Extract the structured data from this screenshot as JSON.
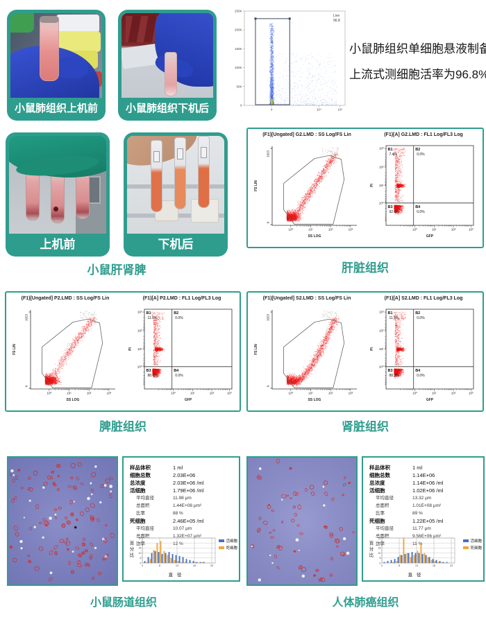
{
  "accent_color": "#2f9d8e",
  "row1": {
    "photo_before": {
      "caption": "小鼠肺组织上机前"
    },
    "photo_after": {
      "caption": "小鼠肺组织下机后"
    },
    "note_line1": "小鼠肺组织单细胞悬液制备",
    "note_line2": "上流式测细胞活率为96.8%"
  },
  "row2": {
    "photo_before": {
      "caption": "上机前"
    },
    "photo_after": {
      "caption": "下机后"
    },
    "group_caption": "小鼠肝肾脾",
    "liver": {
      "caption": "肝脏组织",
      "ss_title": "(F1)[Ungated] G2.LMD : SS Log/FS Lin",
      "quad_title": "(F1)[A] G2.LMD : FL1 Log/FL3 Log"
    }
  },
  "row3": {
    "spleen": {
      "caption": "脾脏组织",
      "ss_title": "(F1)[Ungated] P2.LMD : SS Log/FS Lin",
      "quad_title": "(F1)[A] P2.LMD : FL1 Log/FL3 Log"
    },
    "kidney": {
      "caption": "肾脏组织",
      "ss_title": "(F1)[Ungated] S2.LMD : SS Log/FS Lin",
      "quad_title": "(F1)[A] S2.LMD : FL1 Log/FL3 Log"
    }
  },
  "row4": {
    "intestine": {
      "caption": "小鼠肠道组织",
      "stats": [
        {
          "label": "样品体积",
          "value": "1 ml"
        },
        {
          "label": "细胞总数",
          "value": "2.03E+06"
        },
        {
          "label": "总浓度",
          "value": "2.03E+06 /ml"
        },
        {
          "label": "活细胞",
          "value": "1.79E+06 /ml"
        },
        {
          "label": "平均直径",
          "value": "11.98 μm",
          "sub": true
        },
        {
          "label": "总面积",
          "value": "1.44E+08 μm²",
          "sub": true
        },
        {
          "label": "比率",
          "value": "88 %",
          "sub": true
        },
        {
          "label": "死细胞",
          "value": "2.46E+05 /ml"
        },
        {
          "label": "平均直径",
          "value": "10.07 μm",
          "sub": true
        },
        {
          "label": "总面积",
          "value": "1.32E+07 μm²",
          "sub": true
        },
        {
          "label": "比率",
          "value": "12 %",
          "sub": true
        }
      ]
    },
    "lung_cancer": {
      "caption": "人体肺癌组织",
      "stats": [
        {
          "label": "样品体积",
          "value": "1 ml"
        },
        {
          "label": "细胞总数",
          "value": "1.14E+06"
        },
        {
          "label": "总浓度",
          "value": "1.14E+06 /ml"
        },
        {
          "label": "活细胞",
          "value": "1.02E+06 /ml"
        },
        {
          "label": "平均直径",
          "value": "13.32 μm",
          "sub": true
        },
        {
          "label": "总面积",
          "value": "1.01E+08 μm²",
          "sub": true
        },
        {
          "label": "比率",
          "value": "89 %",
          "sub": true
        },
        {
          "label": "死细胞",
          "value": "1.22E+05 /ml"
        },
        {
          "label": "平均直径",
          "value": "11.77 μm",
          "sub": true
        },
        {
          "label": "总面积",
          "value": "9.56E+06 μm²",
          "sub": true
        },
        {
          "label": "比率",
          "value": "11 %",
          "sub": true
        }
      ]
    }
  },
  "chart_data": {
    "viability": {
      "type": "scatter",
      "painter": "viability",
      "gate_label": "Live",
      "gate_value": "96.8",
      "yticks": [
        "250K",
        "200K",
        "150K",
        "100K",
        "50K",
        "0"
      ],
      "xticks": [
        "0",
        "10⁴",
        "10⁵"
      ],
      "point_color": "#3c64dc",
      "seed": 7
    },
    "liver_ss": {
      "type": "scatter",
      "painter": "ssfs",
      "xlabel": "SS LOG",
      "ylabel": "FS LIN",
      "xticks": [
        "10⁰",
        "10¹",
        "10²",
        "10³"
      ],
      "yticks": [
        "1023",
        "0"
      ],
      "point_color": "#eb1414",
      "blob": 0.52,
      "exp": 1.0,
      "seed": 11
    },
    "liver_quad": {
      "type": "scatter",
      "painter": "quadrant",
      "xlabel": "GFP",
      "ylabel": "PI",
      "xticks": [
        "10⁰",
        "10¹",
        "10²",
        "10³"
      ],
      "yticks": [
        "10³",
        "10²",
        "10¹",
        "10⁰"
      ],
      "quadrants": [
        [
          "B1",
          "7.4%"
        ],
        [
          "B2",
          "0.0%"
        ],
        [
          "B3",
          "92.6%"
        ],
        [
          "B4",
          "0.0%"
        ]
      ],
      "point_color": "#eb1414",
      "seed": 13
    },
    "spleen_ss": {
      "type": "scatter",
      "painter": "ssfs",
      "xlabel": "SS LOG",
      "ylabel": "FS LIN",
      "xticks": [
        "10⁰",
        "10¹",
        "10²",
        "10³"
      ],
      "yticks": [
        "1023",
        "0"
      ],
      "point_color": "#eb1414",
      "blob": 0.68,
      "exp": 0.85,
      "seed": 31
    },
    "spleen_quad": {
      "type": "scatter",
      "painter": "quadrant",
      "xlabel": "GFP",
      "ylabel": "PI",
      "xticks": [
        "10⁰",
        "10¹",
        "10²",
        "10³"
      ],
      "yticks": [
        "10³",
        "10²",
        "10¹",
        "10⁰"
      ],
      "quadrants": [
        [
          "B1",
          "11.9%"
        ],
        [
          "B2",
          "0.0%"
        ],
        [
          "B3",
          "88.1%"
        ],
        [
          "B4",
          "0.0%"
        ]
      ],
      "point_color": "#eb1414",
      "seed": 33
    },
    "kidney_ss": {
      "type": "scatter",
      "painter": "ssfs",
      "xlabel": "SS LOG",
      "ylabel": "FS LIN",
      "xticks": [
        "10⁰",
        "10¹",
        "10²",
        "10³"
      ],
      "yticks": [
        "1023",
        "0"
      ],
      "point_color": "#eb1414",
      "blob": 0.38,
      "exp": 1.65,
      "seed": 51
    },
    "kidney_quad": {
      "type": "scatter",
      "painter": "quadrant",
      "xlabel": "GFP",
      "ylabel": "PI",
      "xticks": [
        "10⁰",
        "10¹",
        "10²",
        "10³"
      ],
      "yticks": [
        "10³",
        "10²",
        "10¹",
        "10⁰"
      ],
      "quadrants": [
        [
          "B1",
          "11.9%"
        ],
        [
          "B2",
          "0.0%"
        ],
        [
          "B3",
          "88.1%"
        ],
        [
          "B4",
          "0.0%"
        ]
      ],
      "point_color": "#eb1414",
      "seed": 53
    },
    "intestine_hist": {
      "type": "bar",
      "painter": "hist",
      "ylabel": "百分比",
      "xlabel": "直 径",
      "ylim": [
        0,
        25
      ],
      "yticks": [
        0,
        5,
        10,
        15,
        20,
        25
      ],
      "xticks": [
        3,
        8,
        13,
        18,
        23
      ],
      "x_first": 4,
      "series": [
        {
          "name": "活细胞",
          "color": "#4472c4",
          "values": [
            2,
            6,
            10,
            12,
            11,
            9,
            10,
            11,
            9,
            8,
            7,
            6,
            4,
            3,
            2,
            1,
            1,
            1,
            0,
            0
          ]
        },
        {
          "name": "死细胞",
          "color": "#f2a53a",
          "values": [
            1,
            4,
            13,
            20,
            22,
            12,
            8,
            5,
            3,
            2,
            1,
            1,
            0,
            0,
            1,
            0,
            1,
            0,
            0,
            0
          ]
        }
      ]
    },
    "lung_hist": {
      "type": "bar",
      "painter": "hist",
      "ylabel": "百分比",
      "xlabel": "直 径",
      "ylim": [
        0,
        25
      ],
      "yticks": [
        0,
        5,
        10,
        15,
        20,
        25
      ],
      "xticks": [
        3,
        8,
        13,
        18,
        23
      ],
      "x_first": 4,
      "series": [
        {
          "name": "活细胞",
          "color": "#4472c4",
          "values": [
            1,
            2,
            3,
            4,
            6,
            8,
            9,
            10,
            11,
            10,
            10,
            9,
            8,
            6,
            4,
            3,
            2,
            1,
            1,
            0
          ]
        },
        {
          "name": "死细胞",
          "color": "#f2a53a",
          "values": [
            0,
            0,
            1,
            2,
            8,
            25,
            10,
            6,
            8,
            12,
            20,
            10,
            6,
            3,
            2,
            1,
            1,
            0,
            0,
            0
          ]
        }
      ]
    },
    "intestine_micro": {
      "type": "microscopy",
      "painter": "micro",
      "bg": "#7b7fc0",
      "red_cells": 95,
      "white_cells": 26,
      "black_dot": true,
      "seed": 21
    },
    "lung_micro": {
      "type": "microscopy",
      "painter": "micro",
      "bg": "#8a8dc9",
      "red_cells": 58,
      "white_cells": 13,
      "black_dot": false,
      "seed": 23
    }
  }
}
